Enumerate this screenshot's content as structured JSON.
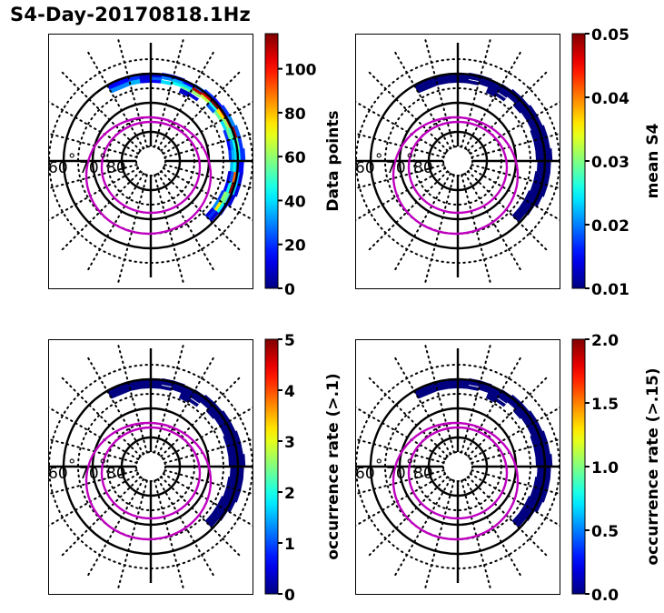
{
  "figure_title": "S4-Day-20170818.1Hz",
  "colors": {
    "axis": "#000000",
    "oval": "#bf00bf",
    "colormap": "jet"
  },
  "chart_data": [
    {
      "type": "heatmap",
      "projection": "polar (MLT vs magnetic latitude)",
      "title": "",
      "colorbar": {
        "label": "Data points",
        "range": [
          0,
          116
        ],
        "ticks": [
          0,
          20,
          40,
          60,
          80,
          100
        ],
        "tick_labels": [
          "0",
          "20",
          "40",
          "60",
          "80",
          "100"
        ]
      },
      "latitude_labels": [
        "60",
        "70",
        "80"
      ],
      "solid_circles_lat": [
        60,
        70,
        80
      ],
      "dotted_circles_lat": [
        55,
        65,
        75,
        85
      ],
      "bins": [
        [
          13.0,
          14.0,
          61.5,
          63.0,
          30
        ],
        [
          13.0,
          14.0,
          60.0,
          61.5,
          15
        ],
        [
          12.5,
          13.0,
          61.5,
          63.0,
          35
        ],
        [
          12.5,
          13.0,
          60.0,
          61.5,
          20
        ],
        [
          12.0,
          12.5,
          62.0,
          63.0,
          12
        ],
        [
          12.0,
          12.5,
          61.0,
          62.0,
          10
        ],
        [
          12.0,
          12.5,
          60.0,
          61.0,
          8
        ],
        [
          11.5,
          12.0,
          62.0,
          63.0,
          15
        ],
        [
          11.5,
          12.0,
          61.0,
          62.0,
          25
        ],
        [
          11.5,
          12.0,
          60.0,
          61.0,
          10
        ],
        [
          11.0,
          11.5,
          62.0,
          63.0,
          40
        ],
        [
          11.0,
          11.5,
          60.5,
          61.5,
          30
        ],
        [
          11.0,
          11.5,
          59.5,
          60.5,
          15
        ],
        [
          10.5,
          11.0,
          61.5,
          62.5,
          45
        ],
        [
          10.5,
          11.0,
          60.5,
          61.5,
          35
        ],
        [
          10.5,
          11.0,
          59.5,
          60.5,
          10
        ],
        [
          10.0,
          10.5,
          62.0,
          63.0,
          55
        ],
        [
          10.0,
          10.5,
          61.0,
          62.0,
          40
        ],
        [
          10.0,
          10.5,
          60.0,
          61.0,
          15
        ],
        [
          10.0,
          10.5,
          63.0,
          64.5,
          8
        ],
        [
          9.5,
          10.0,
          61.5,
          62.5,
          60
        ],
        [
          9.5,
          10.0,
          60.5,
          61.5,
          110
        ],
        [
          9.5,
          10.0,
          59.5,
          60.5,
          25
        ],
        [
          9.5,
          10.0,
          63.0,
          64.0,
          10
        ],
        [
          9.0,
          9.5,
          61.0,
          62.0,
          65
        ],
        [
          9.0,
          9.5,
          60.0,
          61.0,
          105
        ],
        [
          9.0,
          9.5,
          59.0,
          60.0,
          20
        ],
        [
          8.5,
          9.0,
          61.0,
          62.0,
          45
        ],
        [
          8.5,
          9.0,
          60.0,
          61.0,
          115
        ],
        [
          8.5,
          9.0,
          59.0,
          60.0,
          15
        ],
        [
          8.5,
          9.0,
          62.0,
          63.0,
          25
        ],
        [
          8.0,
          8.5,
          61.5,
          62.5,
          55
        ],
        [
          8.0,
          8.5,
          60.5,
          61.5,
          75
        ],
        [
          8.0,
          8.5,
          59.5,
          60.5,
          100
        ],
        [
          8.0,
          8.5,
          58.5,
          59.5,
          20
        ],
        [
          7.5,
          8.0,
          61.5,
          62.5,
          40
        ],
        [
          7.5,
          8.0,
          60.5,
          61.5,
          60
        ],
        [
          7.5,
          8.0,
          59.5,
          60.5,
          95
        ],
        [
          7.5,
          8.0,
          58.5,
          59.5,
          30
        ],
        [
          7.0,
          7.5,
          62.0,
          63.0,
          20
        ],
        [
          7.0,
          7.5,
          61.0,
          62.0,
          55
        ],
        [
          7.0,
          7.5,
          60.0,
          61.0,
          50
        ],
        [
          7.0,
          7.5,
          59.0,
          60.0,
          110
        ],
        [
          7.0,
          7.5,
          58.0,
          59.0,
          25
        ],
        [
          6.5,
          7.0,
          62.0,
          63.0,
          15
        ],
        [
          6.5,
          7.0,
          61.0,
          62.0,
          30
        ],
        [
          6.5,
          7.0,
          60.0,
          61.0,
          45
        ],
        [
          6.5,
          7.0,
          59.0,
          60.0,
          55
        ],
        [
          6.5,
          7.0,
          58.0,
          59.0,
          20
        ],
        [
          6.0,
          6.5,
          62.0,
          63.0,
          20
        ],
        [
          6.0,
          6.5,
          61.0,
          62.0,
          35
        ],
        [
          6.0,
          6.5,
          60.0,
          61.0,
          40
        ],
        [
          6.0,
          6.5,
          59.0,
          60.0,
          45
        ],
        [
          6.0,
          6.5,
          57.5,
          59.0,
          20
        ],
        [
          5.5,
          6.0,
          61.5,
          62.5,
          35
        ],
        [
          5.5,
          6.0,
          60.5,
          61.5,
          45
        ],
        [
          5.5,
          6.0,
          59.5,
          60.5,
          30
        ],
        [
          5.5,
          6.0,
          58.0,
          59.5,
          15
        ],
        [
          5.0,
          5.5,
          62.0,
          63.0,
          10
        ],
        [
          5.0,
          5.5,
          61.0,
          62.0,
          25
        ],
        [
          5.0,
          5.5,
          60.0,
          61.0,
          90
        ],
        [
          5.0,
          5.5,
          59.0,
          60.0,
          35
        ],
        [
          5.0,
          5.5,
          58.0,
          59.0,
          10
        ],
        [
          4.5,
          5.0,
          62.0,
          63.0,
          15
        ],
        [
          4.5,
          5.0,
          61.0,
          62.0,
          45
        ],
        [
          4.5,
          5.0,
          60.0,
          61.0,
          115
        ],
        [
          4.5,
          5.0,
          59.0,
          60.0,
          40
        ],
        [
          4.5,
          5.0,
          58.0,
          59.0,
          10
        ],
        [
          4.0,
          4.5,
          62.5,
          63.5,
          20
        ],
        [
          4.0,
          4.5,
          61.5,
          62.5,
          60
        ],
        [
          4.0,
          4.5,
          60.5,
          61.5,
          55
        ],
        [
          4.0,
          4.5,
          59.5,
          60.5,
          25
        ],
        [
          4.0,
          4.5,
          58.5,
          59.5,
          10
        ],
        [
          3.5,
          4.0,
          62.5,
          63.5,
          30
        ],
        [
          3.5,
          4.0,
          61.5,
          62.5,
          75
        ],
        [
          3.5,
          4.0,
          60.5,
          61.5,
          45
        ],
        [
          3.5,
          4.0,
          59.5,
          60.5,
          15
        ],
        [
          3.0,
          3.5,
          62.5,
          63.5,
          10
        ],
        [
          3.0,
          3.5,
          61.5,
          62.5,
          20
        ],
        [
          3.0,
          3.5,
          60.5,
          61.5,
          10
        ]
      ],
      "ovals": [
        "inner-oval",
        "outer-oval"
      ]
    },
    {
      "type": "heatmap",
      "projection": "polar (MLT vs magnetic latitude)",
      "colorbar": {
        "label": "mean S4",
        "range": [
          0.01,
          0.05
        ],
        "ticks": [
          0.01,
          0.02,
          0.03,
          0.04,
          0.05
        ],
        "tick_labels": [
          "0.01",
          "0.02",
          "0.03",
          "0.04",
          "0.05"
        ]
      },
      "latitude_labels": [
        "60",
        "70",
        "80"
      ],
      "uniform_value": 0.01
    },
    {
      "type": "heatmap",
      "projection": "polar (MLT vs magnetic latitude)",
      "colorbar": {
        "label": "occurrence rate (>.1)",
        "range": [
          0,
          5
        ],
        "ticks": [
          0,
          1,
          2,
          3,
          4,
          5
        ],
        "tick_labels": [
          "0",
          "1",
          "2",
          "3",
          "4",
          "5"
        ]
      },
      "latitude_labels": [
        "60",
        "70",
        "80"
      ],
      "uniform_value": 0
    },
    {
      "type": "heatmap",
      "projection": "polar (MLT vs magnetic latitude)",
      "colorbar": {
        "label": "occurrence rate (>.15)",
        "range": [
          0.0,
          2.0
        ],
        "ticks": [
          0.0,
          0.5,
          1.0,
          1.5,
          2.0
        ],
        "tick_labels": [
          "0.0",
          "0.5",
          "1.0",
          "1.5",
          "2.0"
        ]
      },
      "latitude_labels": [
        "60",
        "70",
        "80"
      ],
      "uniform_value": 0
    }
  ]
}
